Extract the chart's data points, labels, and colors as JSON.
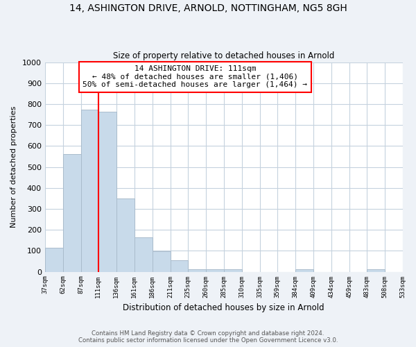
{
  "title": "14, ASHINGTON DRIVE, ARNOLD, NOTTINGHAM, NG5 8GH",
  "subtitle": "Size of property relative to detached houses in Arnold",
  "xlabel": "Distribution of detached houses by size in Arnold",
  "ylabel": "Number of detached properties",
  "bar_color": "#c8daea",
  "bar_edge_color": "#aabccc",
  "vline_x": 111,
  "vline_color": "red",
  "annotation_lines": [
    "14 ASHINGTON DRIVE: 111sqm",
    "← 48% of detached houses are smaller (1,406)",
    "50% of semi-detached houses are larger (1,464) →"
  ],
  "annotation_box_edgecolor": "red",
  "annotation_box_facecolor": "white",
  "bins": [
    37,
    62,
    87,
    111,
    136,
    161,
    186,
    211,
    235,
    260,
    285,
    310,
    335,
    359,
    384,
    409,
    434,
    459,
    483,
    508,
    533
  ],
  "heights": [
    115,
    560,
    775,
    765,
    348,
    165,
    98,
    55,
    13,
    13,
    13,
    0,
    0,
    0,
    13,
    0,
    0,
    0,
    13,
    0
  ],
  "tick_labels": [
    "37sqm",
    "62sqm",
    "87sqm",
    "111sqm",
    "136sqm",
    "161sqm",
    "186sqm",
    "211sqm",
    "235sqm",
    "260sqm",
    "285sqm",
    "310sqm",
    "335sqm",
    "359sqm",
    "384sqm",
    "409sqm",
    "434sqm",
    "459sqm",
    "483sqm",
    "508sqm",
    "533sqm"
  ],
  "ylim": [
    0,
    1000
  ],
  "yticks": [
    0,
    100,
    200,
    300,
    400,
    500,
    600,
    700,
    800,
    900,
    1000
  ],
  "footer_line1": "Contains HM Land Registry data © Crown copyright and database right 2024.",
  "footer_line2": "Contains public sector information licensed under the Open Government Licence v3.0.",
  "background_color": "#eef2f7",
  "plot_bg_color": "#ffffff",
  "grid_color": "#c5d2de"
}
